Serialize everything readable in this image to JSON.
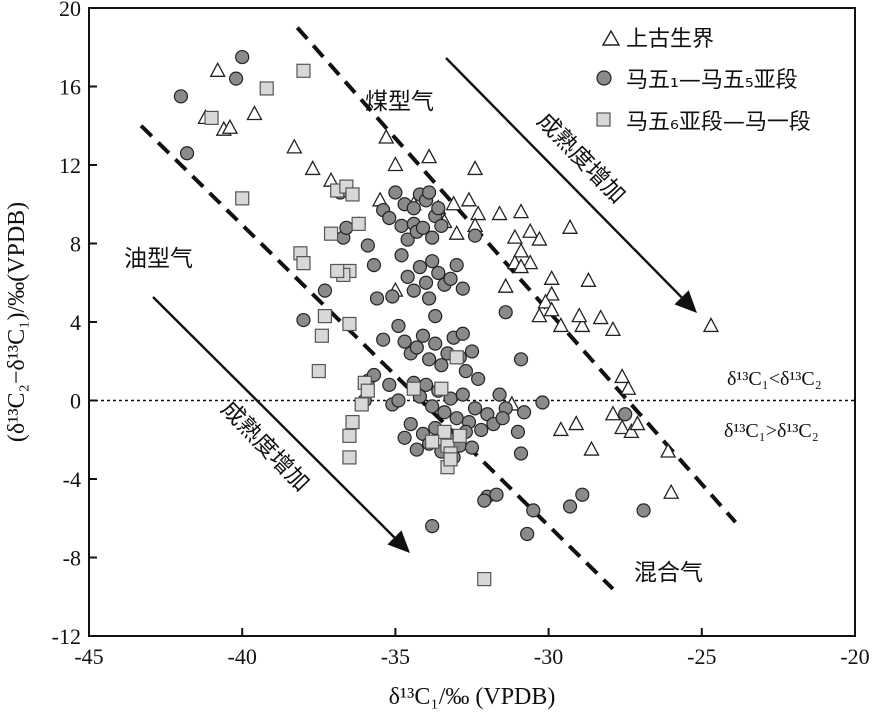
{
  "chart_data": {
    "type": "scatter",
    "xlabel": "δ¹³C₁/‰ (VPDB)",
    "ylabel": "(δ¹³C₂−δ¹³C₁)/‰(VPDB)",
    "xlim": [
      -45,
      -20
    ],
    "ylim": [
      -12,
      20
    ],
    "x_ticks": [
      "-45",
      "-40",
      "-35",
      "-30",
      "-25",
      "-20"
    ],
    "y_ticks": [
      "20",
      "16",
      "12",
      "8",
      "4",
      "0",
      "-4",
      "-8",
      "-12"
    ],
    "legend_position": "top-right",
    "grid": false,
    "zero_line": true,
    "series": [
      {
        "name": "上古生界",
        "marker": "triangle",
        "color": "#ffffff",
        "points": [
          [
            -40.8,
            16.8
          ],
          [
            -40.6,
            13.8
          ],
          [
            -40.4,
            13.9
          ],
          [
            -39.6,
            14.6
          ],
          [
            -41.2,
            14.4
          ],
          [
            -38.3,
            12.9
          ],
          [
            -37.7,
            11.8
          ],
          [
            -37.1,
            11.2
          ],
          [
            -35.3,
            13.4
          ],
          [
            -35.0,
            12.0
          ],
          [
            -33.9,
            12.4
          ],
          [
            -32.4,
            11.8
          ],
          [
            -35.5,
            10.2
          ],
          [
            -34.4,
            10.0
          ],
          [
            -33.6,
            9.8
          ],
          [
            -33.1,
            10.0
          ],
          [
            -32.6,
            10.2
          ],
          [
            -32.3,
            9.5
          ],
          [
            -31.6,
            9.5
          ],
          [
            -30.9,
            9.6
          ],
          [
            -33.4,
            9.1
          ],
          [
            -33.0,
            8.5
          ],
          [
            -32.4,
            8.9
          ],
          [
            -31.1,
            8.3
          ],
          [
            -30.6,
            8.6
          ],
          [
            -30.3,
            8.2
          ],
          [
            -30.6,
            7.0
          ],
          [
            -30.9,
            7.6
          ],
          [
            -31.1,
            7.0
          ],
          [
            -30.9,
            6.8
          ],
          [
            -29.9,
            6.2
          ],
          [
            -29.9,
            5.4
          ],
          [
            -30.1,
            5.0
          ],
          [
            -29.9,
            4.6
          ],
          [
            -29.6,
            3.8
          ],
          [
            -28.9,
            3.8
          ],
          [
            -28.3,
            4.2
          ],
          [
            -27.9,
            3.6
          ],
          [
            -28.7,
            6.1
          ],
          [
            -29.3,
            8.8
          ],
          [
            -29.0,
            4.3
          ],
          [
            -27.6,
            1.2
          ],
          [
            -27.4,
            0.6
          ],
          [
            -27.9,
            -0.7
          ],
          [
            -27.6,
            -1.4
          ],
          [
            -27.3,
            -1.6
          ],
          [
            -27.1,
            -1.2
          ],
          [
            -26.1,
            -2.6
          ],
          [
            -26.0,
            -4.7
          ],
          [
            -24.7,
            3.8
          ],
          [
            -31.2,
            -0.2
          ],
          [
            -28.6,
            -2.5
          ],
          [
            -29.6,
            -1.5
          ],
          [
            -29.1,
            -1.2
          ],
          [
            -35.0,
            5.6
          ],
          [
            -31.4,
            5.8
          ],
          [
            -30.3,
            4.3
          ]
        ]
      },
      {
        "name": "马五₁—马五₅亚段",
        "marker": "circle",
        "color": "#8a8a8a",
        "points": [
          [
            -42.0,
            15.5
          ],
          [
            -41.8,
            12.6
          ],
          [
            -40.2,
            16.4
          ],
          [
            -40.0,
            17.5
          ],
          [
            -38.0,
            4.1
          ],
          [
            -37.3,
            5.6
          ],
          [
            -36.8,
            10.6
          ],
          [
            -36.7,
            8.3
          ],
          [
            -36.6,
            8.8
          ],
          [
            -36.2,
            9.0
          ],
          [
            -35.9,
            7.9
          ],
          [
            -35.7,
            6.9
          ],
          [
            -35.4,
            9.7
          ],
          [
            -35.2,
            9.3
          ],
          [
            -35.6,
            5.2
          ],
          [
            -35.9,
            1.0
          ],
          [
            -35.4,
            3.1
          ],
          [
            -35.2,
            0.8
          ],
          [
            -35.1,
            5.3
          ],
          [
            -35.0,
            10.6
          ],
          [
            -34.8,
            8.9
          ],
          [
            -34.7,
            10.0
          ],
          [
            -34.6,
            8.2
          ],
          [
            -34.4,
            9.0
          ],
          [
            -34.3,
            8.6
          ],
          [
            -34.2,
            10.5
          ],
          [
            -34.1,
            8.8
          ],
          [
            -34.0,
            10.2
          ],
          [
            -33.9,
            10.6
          ],
          [
            -33.8,
            8.3
          ],
          [
            -33.7,
            9.4
          ],
          [
            -33.6,
            9.8
          ],
          [
            -33.5,
            8.9
          ],
          [
            -34.8,
            7.4
          ],
          [
            -34.6,
            6.3
          ],
          [
            -34.4,
            5.6
          ],
          [
            -34.2,
            6.8
          ],
          [
            -34.0,
            6.0
          ],
          [
            -33.8,
            7.1
          ],
          [
            -33.6,
            6.5
          ],
          [
            -33.4,
            5.9
          ],
          [
            -33.2,
            6.2
          ],
          [
            -33.0,
            6.9
          ],
          [
            -32.8,
            5.7
          ],
          [
            -34.9,
            3.8
          ],
          [
            -34.7,
            3.0
          ],
          [
            -34.5,
            2.4
          ],
          [
            -34.3,
            2.7
          ],
          [
            -34.1,
            3.3
          ],
          [
            -33.9,
            2.1
          ],
          [
            -33.7,
            2.9
          ],
          [
            -33.5,
            1.8
          ],
          [
            -33.3,
            2.4
          ],
          [
            -33.1,
            3.2
          ],
          [
            -32.9,
            2.2
          ],
          [
            -32.7,
            1.5
          ],
          [
            -32.5,
            2.5
          ],
          [
            -32.3,
            1.1
          ],
          [
            -34.4,
            0.9
          ],
          [
            -34.2,
            0.2
          ],
          [
            -34.0,
            0.8
          ],
          [
            -33.8,
            -0.3
          ],
          [
            -33.6,
            0.5
          ],
          [
            -33.4,
            -0.6
          ],
          [
            -33.2,
            0.1
          ],
          [
            -33.0,
            -0.9
          ],
          [
            -32.8,
            0.3
          ],
          [
            -32.6,
            -1.1
          ],
          [
            -32.4,
            -0.4
          ],
          [
            -32.2,
            -1.5
          ],
          [
            -32.0,
            -0.7
          ],
          [
            -31.8,
            -1.2
          ],
          [
            -31.6,
            0.3
          ],
          [
            -31.4,
            -0.4
          ],
          [
            -34.7,
            -1.9
          ],
          [
            -34.5,
            -1.2
          ],
          [
            -34.3,
            -2.5
          ],
          [
            -34.1,
            -1.7
          ],
          [
            -33.9,
            -2.2
          ],
          [
            -33.7,
            -1.4
          ],
          [
            -33.5,
            -2.6
          ],
          [
            -33.3,
            -1.9
          ],
          [
            -33.1,
            -2.9
          ],
          [
            -32.9,
            -2.3
          ],
          [
            -32.7,
            -1.6
          ],
          [
            -32.5,
            -2.4
          ],
          [
            -35.1,
            -0.2
          ],
          [
            -34.9,
            0.0
          ],
          [
            -32.0,
            -4.9
          ],
          [
            -31.7,
            -4.8
          ],
          [
            -30.7,
            -6.8
          ],
          [
            -30.5,
            -5.6
          ],
          [
            -29.3,
            -5.4
          ],
          [
            -28.9,
            -4.8
          ],
          [
            -26.9,
            -5.6
          ],
          [
            -32.1,
            -5.1
          ],
          [
            -30.8,
            -0.6
          ],
          [
            -30.9,
            -2.7
          ],
          [
            -31.0,
            -1.6
          ],
          [
            -30.2,
            -0.1
          ],
          [
            -30.9,
            2.1
          ],
          [
            -31.4,
            4.5
          ],
          [
            -32.4,
            8.4
          ],
          [
            -33.8,
            -6.4
          ],
          [
            -27.5,
            -0.7
          ],
          [
            -36.0,
            0.0
          ],
          [
            -35.7,
            1.3
          ],
          [
            -33.9,
            5.2
          ],
          [
            -34.4,
            9.8
          ],
          [
            -31.5,
            -0.9
          ],
          [
            -33.7,
            4.3
          ],
          [
            -32.8,
            3.4
          ]
        ]
      },
      {
        "name": "马五₆亚段—马一段",
        "marker": "square",
        "color": "#d8d8d8",
        "points": [
          [
            -41.0,
            14.4
          ],
          [
            -39.2,
            15.9
          ],
          [
            -38.0,
            16.8
          ],
          [
            -40.0,
            10.3
          ],
          [
            -38.1,
            7.5
          ],
          [
            -38.0,
            7.0
          ],
          [
            -37.1,
            8.5
          ],
          [
            -36.9,
            10.7
          ],
          [
            -36.6,
            10.9
          ],
          [
            -36.4,
            10.5
          ],
          [
            -36.2,
            9.0
          ],
          [
            -36.5,
            6.6
          ],
          [
            -36.7,
            6.4
          ],
          [
            -37.3,
            4.3
          ],
          [
            -37.4,
            3.3
          ],
          [
            -37.5,
            1.5
          ],
          [
            -36.9,
            6.6
          ],
          [
            -36.5,
            3.9
          ],
          [
            -36.0,
            0.9
          ],
          [
            -35.9,
            0.5
          ],
          [
            -36.1,
            -0.2
          ],
          [
            -36.4,
            -1.1
          ],
          [
            -36.5,
            -1.8
          ],
          [
            -36.5,
            -2.9
          ],
          [
            -33.4,
            -1.6
          ],
          [
            -33.3,
            -2.3
          ],
          [
            -33.2,
            -2.7
          ],
          [
            -33.3,
            -3.4
          ],
          [
            -33.8,
            -2.1
          ],
          [
            -33.5,
            0.6
          ],
          [
            -33.0,
            2.2
          ],
          [
            -32.9,
            -1.8
          ],
          [
            -32.1,
            -9.1
          ],
          [
            -34.4,
            0.6
          ],
          [
            -33.2,
            -3.0
          ]
        ]
      }
    ],
    "annotations": {
      "coal_gas": "煤型气",
      "oil_gas": "油型气",
      "mixed_gas": "混合气",
      "maturity_upper": "成熟度增加",
      "maturity_lower": "成熟度增加",
      "cmp_above": "δ¹³C₁<δ¹³C₂",
      "cmp_below": "δ¹³C₁>δ¹³C₂"
    }
  }
}
